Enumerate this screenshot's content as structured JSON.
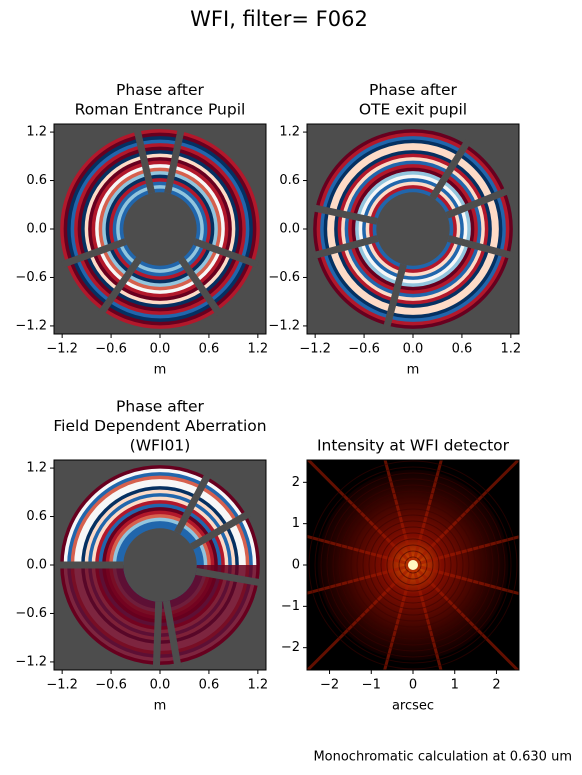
{
  "title": "WFI, filter= F062",
  "footer": "Monochromatic calculation at 0.630 um",
  "chart_data": [
    {
      "type": "pupil",
      "title": [
        "Phase after",
        "Roman Entrance Pupil"
      ],
      "xlabel": "m",
      "xlim": [
        -1.3,
        1.3
      ],
      "ylim": [
        -1.3,
        1.3
      ],
      "xticks": [
        {
          "value": -1.2,
          "label": "−1.2"
        },
        {
          "value": -0.6,
          "label": "−0.6"
        },
        {
          "value": 0,
          "label": "0.0"
        },
        0.6,
        1.2
      ],
      "yticks": [
        {
          "value": -1.2,
          "label": "−1.2"
        },
        {
          "value": -0.6,
          "label": "−0.6"
        },
        {
          "value": 0,
          "label": "0.0"
        },
        0.6,
        1.2
      ]
    },
    {
      "type": "pupil",
      "title": [
        "Phase after",
        "OTE exit pupil"
      ],
      "xlabel": "m",
      "xlim": [
        -1.3,
        1.3
      ],
      "ylim": [
        -1.3,
        1.3
      ],
      "xticks": [
        {
          "value": -1.2,
          "label": "−1.2"
        },
        {
          "value": -0.6,
          "label": "−0.6"
        },
        {
          "value": 0,
          "label": "0.0"
        },
        0.6,
        1.2
      ],
      "yticks": [
        {
          "value": -1.2,
          "label": "−1.2"
        },
        {
          "value": -0.6,
          "label": "−0.6"
        },
        {
          "value": 0,
          "label": "0.0"
        },
        0.6,
        1.2
      ]
    },
    {
      "type": "pupil",
      "title": [
        "Phase after",
        "Field Dependent Aberration",
        "(WFI01)"
      ],
      "xlabel": "m",
      "xlim": [
        -1.3,
        1.3
      ],
      "ylim": [
        -1.3,
        1.3
      ],
      "xticks": [
        {
          "value": -1.2,
          "label": "−1.2"
        },
        {
          "value": -0.6,
          "label": "−0.6"
        },
        {
          "value": 0,
          "label": "0.0"
        },
        0.6,
        1.2
      ],
      "yticks": [
        {
          "value": -1.2,
          "label": "−1.2"
        },
        {
          "value": -0.6,
          "label": "−0.6"
        },
        {
          "value": 0,
          "label": "0.0"
        },
        0.6,
        1.2
      ]
    },
    {
      "type": "psf",
      "title": [
        "Intensity at WFI detector"
      ],
      "xlabel": "arcsec",
      "xlim": [
        -2.54,
        2.54
      ],
      "ylim": [
        -2.54,
        2.54
      ],
      "xticks": [
        {
          "value": -2,
          "label": "−2"
        },
        {
          "value": -1,
          "label": "−1"
        },
        0,
        1,
        2
      ],
      "yticks": [
        {
          "value": -2,
          "label": "−2"
        },
        {
          "value": -1,
          "label": "−1"
        },
        0,
        1,
        2
      ]
    }
  ]
}
